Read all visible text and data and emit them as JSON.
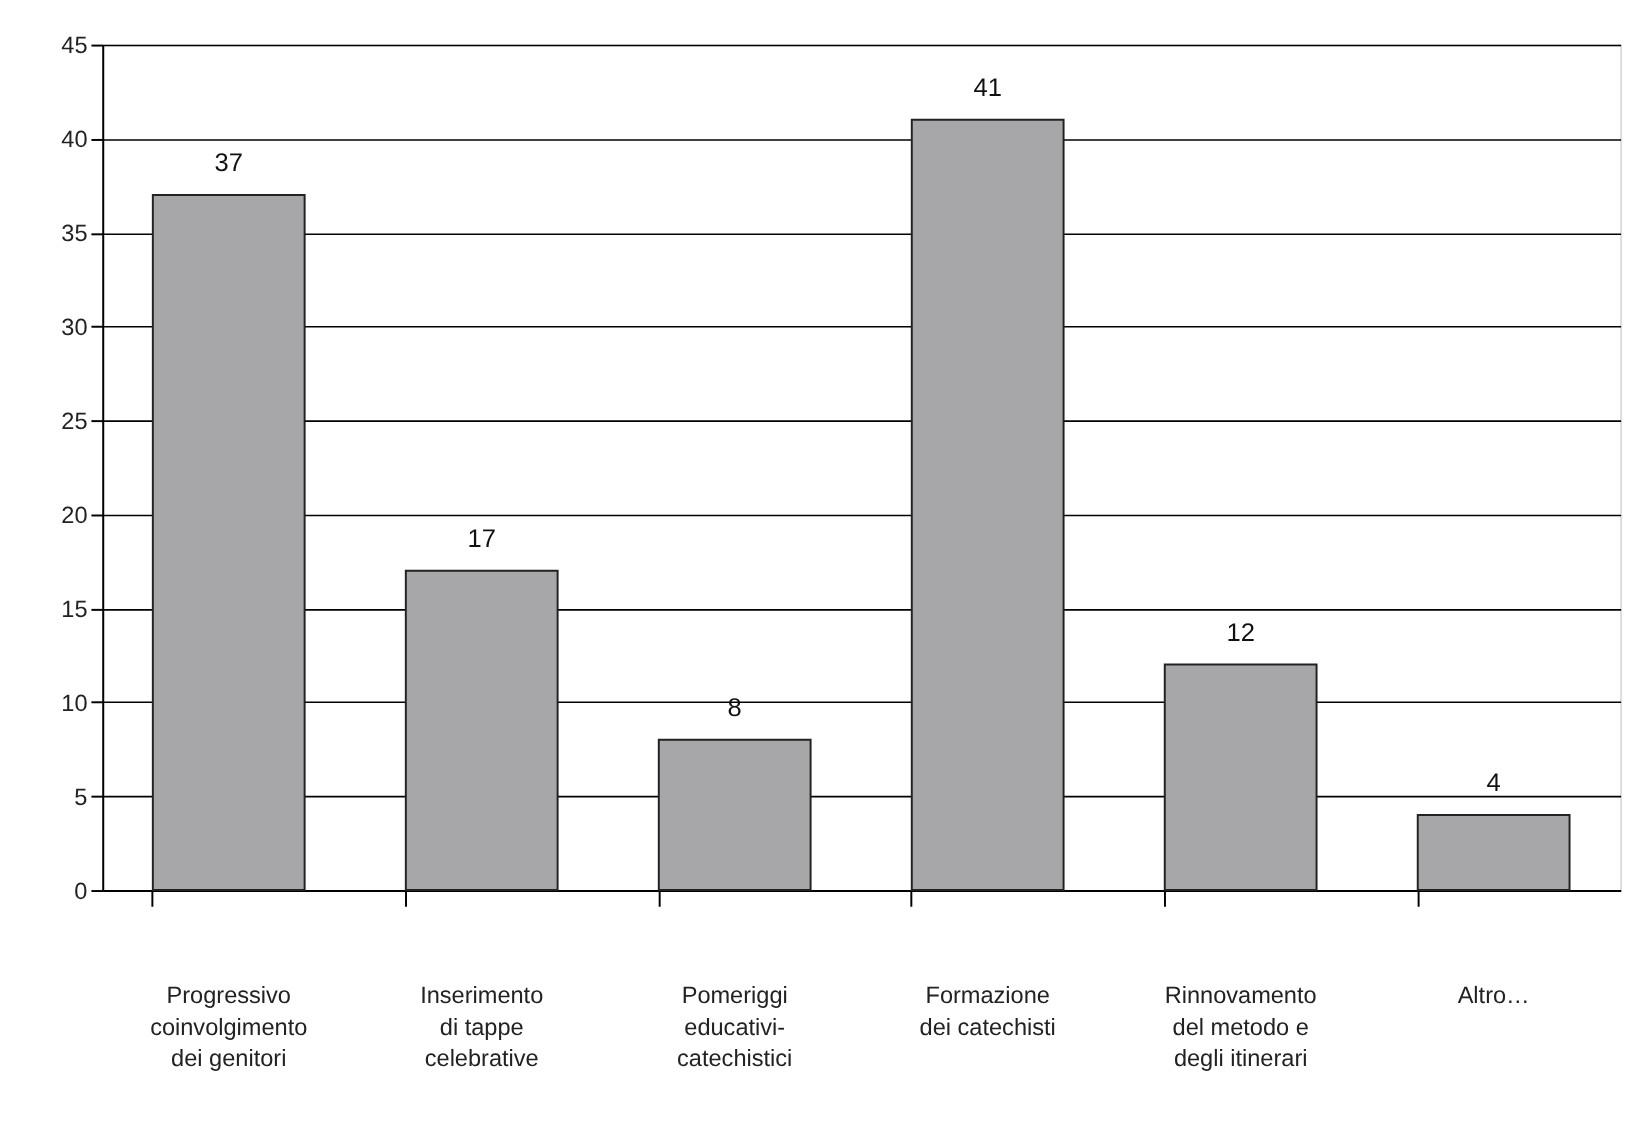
{
  "chart_data": {
    "type": "bar",
    "categories": [
      "Progressivo\ncoinvolgimento\ndei genitori",
      "Inserimento\ndi tappe\ncelebrative",
      "Pomeriggi\neducativi-\ncatechistici",
      "Formazione\ndei catechisti",
      "Rinnovamento\ndel metodo e\ndegli itinerari",
      "Altro…"
    ],
    "values": [
      37,
      17,
      8,
      41,
      12,
      4
    ],
    "color": "#a7a7a9",
    "ylim": [
      0,
      45
    ],
    "yticks": [
      0,
      5,
      10,
      15,
      20,
      25,
      30,
      35,
      40,
      45
    ],
    "grid": "y",
    "data_labels": true
  }
}
